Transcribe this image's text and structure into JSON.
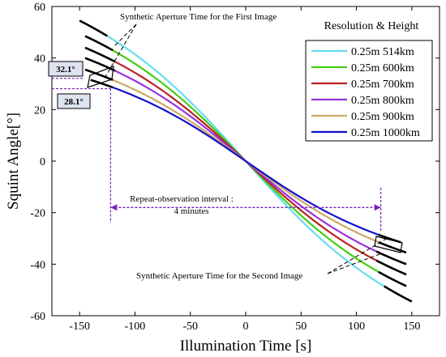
{
  "chart_data": {
    "type": "line",
    "xlabel": "Illumination Time [s]",
    "ylabel": "Squint Angle[°]",
    "xlim": [
      -175,
      175
    ],
    "ylim": [
      -60,
      60
    ],
    "xticks": [
      -150,
      -100,
      -50,
      0,
      50,
      100,
      150
    ],
    "yticks": [
      -60,
      -40,
      -20,
      0,
      20,
      40,
      60
    ],
    "grid": false,
    "legend_title": "Resolution & Height",
    "legend_position": "top-right",
    "series": [
      {
        "name": "0.25m 514km",
        "color": "#66ddee",
        "t_max": 150,
        "y_at_t_max": 54.5,
        "aperture_start_t": 125
      },
      {
        "name": "0.25m 600km",
        "color": "#44cc11",
        "t_max": 145,
        "y_at_t_max": 48.5,
        "aperture_start_t": 120
      },
      {
        "name": "0.25m 700km",
        "color": "#bb2222",
        "t_max": 145,
        "y_at_t_max": 44.0,
        "aperture_start_t": 118
      },
      {
        "name": "0.25m 800km",
        "color": "#9933dd",
        "t_max": 145,
        "y_at_t_max": 40.0,
        "aperture_start_t": 118
      },
      {
        "name": "0.25m 900km",
        "color": "#ccaa66",
        "t_max": 145,
        "y_at_t_max": 35.5,
        "aperture_start_t": 120
      },
      {
        "name": "0.25m 1000km",
        "color": "#1111cc",
        "t_max": 140,
        "y_at_t_max": 31.5,
        "aperture_start_t": 120
      }
    ],
    "annotations": {
      "first_image": "Synthetic Aperture Time for the First Image",
      "second_image": "Synthetic Aperture Time for the Second Image",
      "interval_line1": "Repeat-observation interval :",
      "interval_line2": "4 minutes",
      "angle_high": "32.1°",
      "angle_low": "28.1°",
      "angle_high_value": 32.1,
      "angle_low_value": 28.1,
      "interval_start_t": -122,
      "interval_end_t": 122,
      "interval_y": -18
    }
  }
}
